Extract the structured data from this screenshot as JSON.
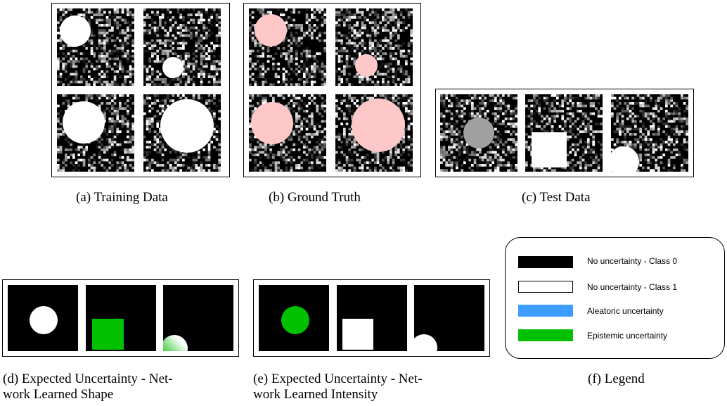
{
  "panels": {
    "a": {
      "caption": "(a) Training Data"
    },
    "b": {
      "caption": "(b) Ground Truth"
    },
    "c": {
      "caption": "(c) Test Data"
    },
    "d": {
      "caption_line1": "(d) Expected Uncertainty - Net-",
      "caption_line2": "work Learned Shape"
    },
    "e": {
      "caption_line1": "(e) Expected Uncertainty - Net-",
      "caption_line2": "work Learned Intensity"
    },
    "f": {
      "caption": "(f) Legend"
    }
  },
  "legend": {
    "items": [
      {
        "label": "No uncertainty - Class 0",
        "color": "#000000"
      },
      {
        "label": "No uncertainty - Class 1",
        "color": "#ffffff"
      },
      {
        "label": "Aleatoric uncertainty",
        "color": "#3d9cff"
      },
      {
        "label": "Epistemic uncertainty",
        "color": "#00c000"
      }
    ]
  },
  "colors": {
    "ground_truth_pink": "#ffc8c8",
    "test_gray": "#a0a0a0",
    "epistemic_green": "#00c000"
  }
}
